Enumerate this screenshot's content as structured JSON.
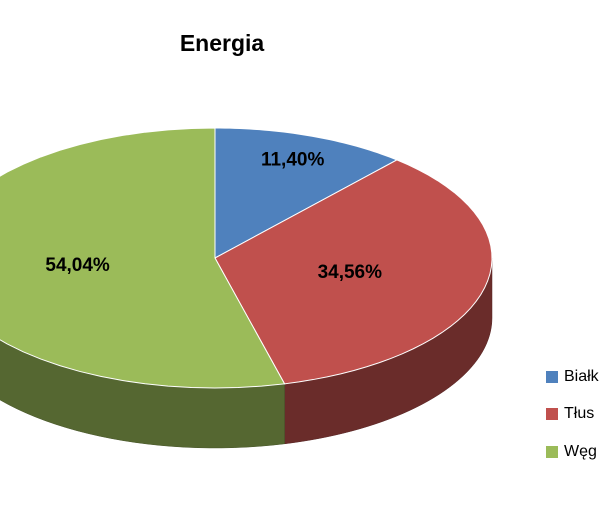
{
  "chart_data": {
    "type": "pie",
    "title": "Energia",
    "categories": [
      "Białk",
      "Tłus",
      "Węg"
    ],
    "values": [
      11.4,
      34.56,
      54.04
    ],
    "value_labels": [
      "11,40%",
      "34,56%",
      "54,04%"
    ],
    "colors": [
      "#4f81bd",
      "#c0504d",
      "#9bbb59"
    ],
    "legend": "right"
  }
}
